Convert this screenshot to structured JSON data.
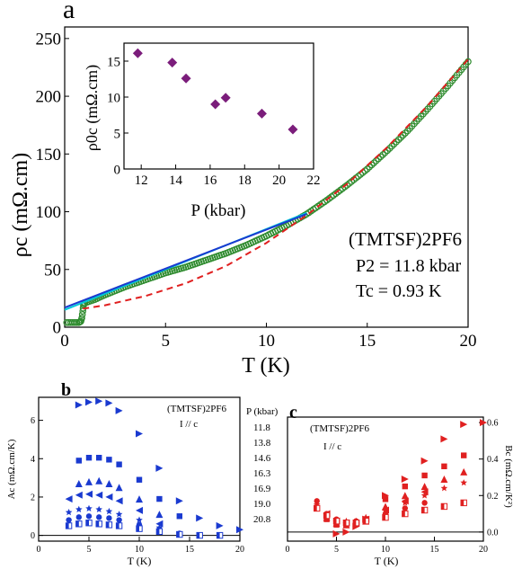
{
  "panels": {
    "a": {
      "label": "a"
    },
    "b": {
      "label": "b"
    },
    "c": {
      "label": "c"
    }
  },
  "chart_data": [
    {
      "id": "a-main",
      "type": "line",
      "xlabel": "T (K)",
      "ylabel": "ρc (mΩ.cm)",
      "xlim": [
        0,
        20
      ],
      "ylim": [
        0,
        260
      ],
      "xticks": [
        "0",
        "5",
        "10",
        "15",
        "20"
      ],
      "yticks": [
        "0",
        "50",
        "100",
        "150",
        "200",
        "250"
      ],
      "annotations": {
        "compound": "(TMTSF)2PF6",
        "pressure": "P2 = 11.8 kbar",
        "tc": "Tc =  0.93 K"
      },
      "series": [
        {
          "role": "data",
          "color": "#2e8b2e",
          "x": [
            0.1,
            0.3,
            0.5,
            0.7,
            0.8,
            0.85,
            0.9,
            0.93,
            1.0,
            1.5,
            2,
            3,
            4,
            5,
            6,
            7,
            8,
            9,
            10,
            11,
            12,
            13,
            14,
            15,
            16,
            17,
            18,
            19,
            20
          ],
          "y": [
            4,
            4,
            4,
            4,
            5,
            8,
            14,
            19,
            21,
            24,
            28,
            35,
            41,
            47,
            52,
            58,
            64,
            71,
            79,
            88,
            98,
            110,
            123,
            137,
            153,
            170,
            189,
            209,
            230
          ]
        },
        {
          "role": "fit-linear-cyan",
          "color": "#00c8d8",
          "x": [
            0,
            12
          ],
          "y": [
            15,
            99
          ]
        },
        {
          "role": "fit-linear-blue",
          "color": "#1a3ad0",
          "x": [
            0,
            12
          ],
          "y": [
            17,
            98
          ]
        },
        {
          "role": "fit-quadratic",
          "color": "#e02020",
          "x": [
            0.9,
            2,
            4,
            6,
            8,
            10,
            12,
            14,
            16,
            18,
            20
          ],
          "y": [
            16,
            19,
            27,
            38,
            53,
            73,
            97,
            124,
            156,
            192,
            232
          ]
        }
      ]
    },
    {
      "id": "a-inset",
      "type": "scatter",
      "xlabel": "P (kbar)",
      "ylabel": "ρ0c (mΩ.cm)",
      "xlim": [
        11,
        22
      ],
      "ylim": [
        0,
        17.5
      ],
      "xticks": [
        "12",
        "14",
        "16",
        "18",
        "20",
        "22"
      ],
      "yticks": [
        "0",
        "5",
        "10",
        "15"
      ],
      "color": "#7b1d7b",
      "x": [
        11.8,
        13.8,
        14.6,
        16.3,
        16.9,
        19.0,
        20.8
      ],
      "y": [
        16.1,
        14.8,
        12.6,
        9.0,
        9.9,
        7.7,
        5.5
      ]
    },
    {
      "id": "b",
      "type": "scatter",
      "xlabel": "T (K)",
      "ylabel": "Ac (mΩ.cm/K)",
      "xlim": [
        0,
        20
      ],
      "ylim": [
        -0.3,
        7.2
      ],
      "xticks": [
        "0",
        "5",
        "10",
        "15",
        "20"
      ],
      "yticks": [
        "0",
        "2",
        "4",
        "6"
      ],
      "compound": "(TMTSF)2PF6",
      "orientation": "I // c",
      "legend_title": "P (kbar)",
      "legend": [
        "11.8",
        "13.8",
        "14.6",
        "16.3",
        "16.9",
        "19.0",
        "20.8"
      ],
      "color": "#1a3ad0",
      "series": [
        {
          "name": "11.8",
          "marker": "tri-right",
          "x": [
            4,
            5,
            6,
            7,
            8,
            10,
            12,
            14,
            16,
            18,
            20
          ],
          "y": [
            6.8,
            6.95,
            7.0,
            6.9,
            6.5,
            5.3,
            3.5,
            1.8,
            0.9,
            0.5,
            0.3
          ]
        },
        {
          "name": "13.8",
          "marker": "square",
          "x": [
            4,
            5,
            6,
            7,
            8,
            10,
            12,
            14
          ],
          "y": [
            3.9,
            4.05,
            4.05,
            3.95,
            3.7,
            2.9,
            1.9,
            1.0
          ]
        },
        {
          "name": "14.6",
          "marker": "tri-up",
          "x": [
            4,
            5,
            6,
            7,
            8,
            10,
            12
          ],
          "y": [
            2.7,
            2.8,
            2.85,
            2.7,
            2.5,
            1.9,
            1.1
          ]
        },
        {
          "name": "16.3",
          "marker": "tri-left",
          "x": [
            3,
            4,
            5,
            6,
            7,
            8,
            10,
            12
          ],
          "y": [
            1.9,
            2.1,
            2.15,
            2.1,
            2.0,
            1.8,
            1.3,
            0.6
          ]
        },
        {
          "name": "16.9",
          "marker": "star",
          "x": [
            3,
            4,
            5,
            6,
            7,
            8,
            10,
            12
          ],
          "y": [
            1.2,
            1.35,
            1.4,
            1.35,
            1.25,
            1.1,
            0.8,
            0.4
          ]
        },
        {
          "name": "19.0",
          "marker": "circle",
          "x": [
            3,
            4,
            5,
            6,
            7,
            8,
            10,
            12,
            14
          ],
          "y": [
            0.8,
            0.95,
            1.0,
            0.95,
            0.9,
            0.8,
            0.55,
            0.3,
            0.1
          ]
        },
        {
          "name": "20.8",
          "marker": "half-square",
          "x": [
            3,
            4,
            5,
            6,
            7,
            8,
            10,
            12,
            14,
            16,
            18
          ],
          "y": [
            0.5,
            0.6,
            0.65,
            0.6,
            0.55,
            0.5,
            0.35,
            0.2,
            0.05,
            0.0,
            0.0
          ]
        }
      ]
    },
    {
      "id": "c",
      "type": "scatter",
      "xlabel": "T (K)",
      "ylabel": "Bc (mΩ.cm/K²)",
      "xlim": [
        0,
        20
      ],
      "ylim": [
        -0.05,
        0.63
      ],
      "xticks": [
        "0",
        "5",
        "10",
        "15",
        "20"
      ],
      "yticks": [
        "0.0",
        "0.2",
        "0.4",
        "0.6"
      ],
      "compound": "(TMTSF)2PF6",
      "orientation": "I // c",
      "color": "#e02020",
      "series": [
        {
          "name": "11.8",
          "marker": "tri-right",
          "x": [
            5,
            6,
            7,
            8,
            10,
            12,
            14,
            16,
            18,
            20
          ],
          "y": [
            -0.01,
            0.0,
            0.03,
            0.07,
            0.2,
            0.29,
            0.39,
            0.51,
            0.59,
            0.6
          ]
        },
        {
          "name": "13.8",
          "marker": "square",
          "x": [
            4,
            5,
            6,
            7,
            8,
            10,
            12,
            14,
            16,
            18
          ],
          "y": [
            0.07,
            0.04,
            0.04,
            0.05,
            0.07,
            0.18,
            0.25,
            0.31,
            0.36,
            0.42
          ]
        },
        {
          "name": "14.6",
          "marker": "tri-up",
          "x": [
            4,
            5,
            6,
            7,
            8,
            10,
            12,
            14,
            16,
            18
          ],
          "y": [
            0.08,
            0.05,
            0.04,
            0.05,
            0.06,
            0.14,
            0.2,
            0.25,
            0.29,
            0.33
          ]
        },
        {
          "name": "16.3",
          "marker": "tri-left",
          "x": [
            4,
            5,
            6,
            7,
            8,
            10,
            12,
            14
          ],
          "y": [
            0.1,
            0.06,
            0.05,
            0.05,
            0.07,
            0.12,
            0.17,
            0.22
          ]
        },
        {
          "name": "16.9",
          "marker": "star",
          "x": [
            3,
            4,
            5,
            6,
            7,
            8,
            10,
            12,
            14,
            16,
            18
          ],
          "y": [
            0.15,
            0.08,
            0.06,
            0.06,
            0.06,
            0.08,
            0.12,
            0.16,
            0.2,
            0.24,
            0.27
          ]
        },
        {
          "name": "19.0",
          "marker": "circle",
          "x": [
            3,
            4,
            5,
            6,
            7,
            8,
            10,
            12,
            14
          ],
          "y": [
            0.17,
            0.1,
            0.07,
            0.05,
            0.06,
            0.07,
            0.1,
            0.13,
            0.16
          ]
        },
        {
          "name": "20.8",
          "marker": "half-square",
          "x": [
            3,
            4,
            5,
            6,
            7,
            8,
            10,
            12,
            14,
            16,
            18
          ],
          "y": [
            0.13,
            0.09,
            0.06,
            0.05,
            0.05,
            0.06,
            0.08,
            0.1,
            0.12,
            0.14,
            0.16
          ]
        }
      ]
    }
  ]
}
